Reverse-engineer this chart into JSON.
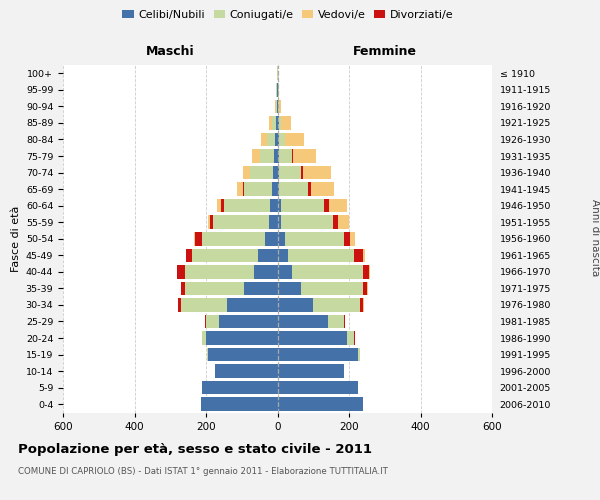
{
  "age_groups": [
    "0-4",
    "5-9",
    "10-14",
    "15-19",
    "20-24",
    "25-29",
    "30-34",
    "35-39",
    "40-44",
    "45-49",
    "50-54",
    "55-59",
    "60-64",
    "65-69",
    "70-74",
    "75-79",
    "80-84",
    "85-89",
    "90-94",
    "95-99",
    "100+"
  ],
  "birth_years": [
    "2006-2010",
    "2001-2005",
    "1996-2000",
    "1991-1995",
    "1986-1990",
    "1981-1985",
    "1976-1980",
    "1971-1975",
    "1966-1970",
    "1961-1965",
    "1956-1960",
    "1951-1955",
    "1946-1950",
    "1941-1945",
    "1936-1940",
    "1931-1935",
    "1926-1930",
    "1921-1925",
    "1916-1920",
    "1911-1915",
    "≤ 1910"
  ],
  "males_celibi": [
    215,
    210,
    175,
    195,
    200,
    165,
    140,
    95,
    65,
    55,
    35,
    25,
    20,
    15,
    12,
    10,
    8,
    5,
    2,
    1,
    0
  ],
  "males_coniugati": [
    0,
    0,
    0,
    2,
    10,
    35,
    130,
    165,
    195,
    185,
    175,
    155,
    130,
    80,
    65,
    40,
    20,
    10,
    3,
    2,
    1
  ],
  "males_vedovi": [
    0,
    0,
    0,
    0,
    0,
    0,
    0,
    1,
    1,
    2,
    3,
    5,
    10,
    15,
    20,
    20,
    18,
    8,
    2,
    1,
    0
  ],
  "males_divorziati": [
    0,
    0,
    0,
    0,
    1,
    2,
    8,
    10,
    20,
    15,
    20,
    10,
    8,
    2,
    0,
    0,
    0,
    0,
    0,
    0,
    0
  ],
  "females_nubili": [
    240,
    225,
    185,
    225,
    195,
    140,
    100,
    65,
    40,
    30,
    20,
    10,
    10,
    5,
    5,
    5,
    5,
    3,
    2,
    1,
    0
  ],
  "females_coniugate": [
    0,
    0,
    0,
    5,
    20,
    45,
    130,
    175,
    200,
    185,
    165,
    145,
    120,
    80,
    60,
    35,
    15,
    8,
    3,
    2,
    1
  ],
  "females_vedove": [
    0,
    0,
    0,
    0,
    0,
    0,
    1,
    2,
    5,
    5,
    15,
    30,
    50,
    65,
    80,
    65,
    55,
    28,
    5,
    2,
    1
  ],
  "females_divorziate": [
    0,
    0,
    0,
    0,
    1,
    5,
    10,
    10,
    15,
    25,
    18,
    15,
    15,
    8,
    6,
    2,
    0,
    0,
    0,
    0,
    0
  ],
  "colors_celibi": "#4472A8",
  "colors_coniugati": "#C5D9A0",
  "colors_vedovi": "#F5C87A",
  "colors_divorziati": "#CC1111",
  "title": "Popolazione per età, sesso e stato civile - 2011",
  "subtitle": "COMUNE DI CAPRIOLO (BS) - Dati ISTAT 1° gennaio 2011 - Elaborazione TUTTITALIA.IT",
  "label_maschi": "Maschi",
  "label_femmine": "Femmine",
  "ylabel_left": "Fasce di età",
  "ylabel_right": "Anni di nascita",
  "legend_labels": [
    "Celibi/Nubili",
    "Coniugati/e",
    "Vedovi/e",
    "Divorziati/e"
  ],
  "xlim": 600,
  "bg_color": "#f2f2f2",
  "plot_bg": "#ffffff",
  "grid_color": "#cccccc"
}
